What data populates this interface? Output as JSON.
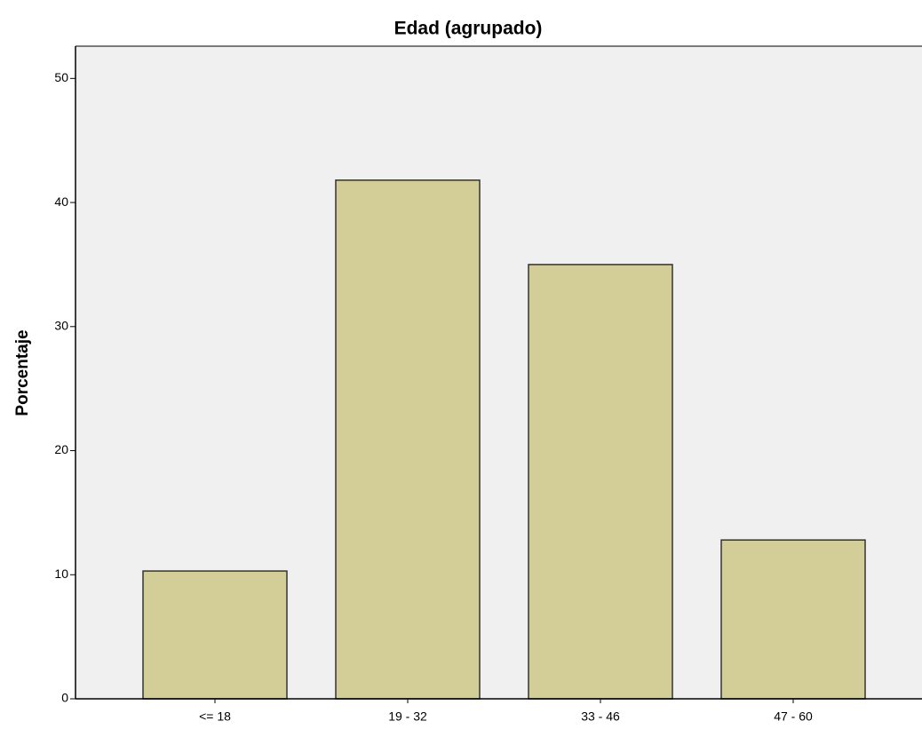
{
  "chart_data": {
    "type": "bar",
    "title": "Edad (agrupado)",
    "y_label": "Porcentaje",
    "categories": [
      "<= 18",
      "19 - 32",
      "33 - 46",
      "47 - 60"
    ],
    "values": [
      10.3,
      41.8,
      35.0,
      12.8
    ],
    "color": "#d3ce97",
    "ylim": [
      0,
      52.6
    ],
    "yticks": [
      0,
      10,
      20,
      30,
      40,
      50
    ],
    "grid": false
  }
}
